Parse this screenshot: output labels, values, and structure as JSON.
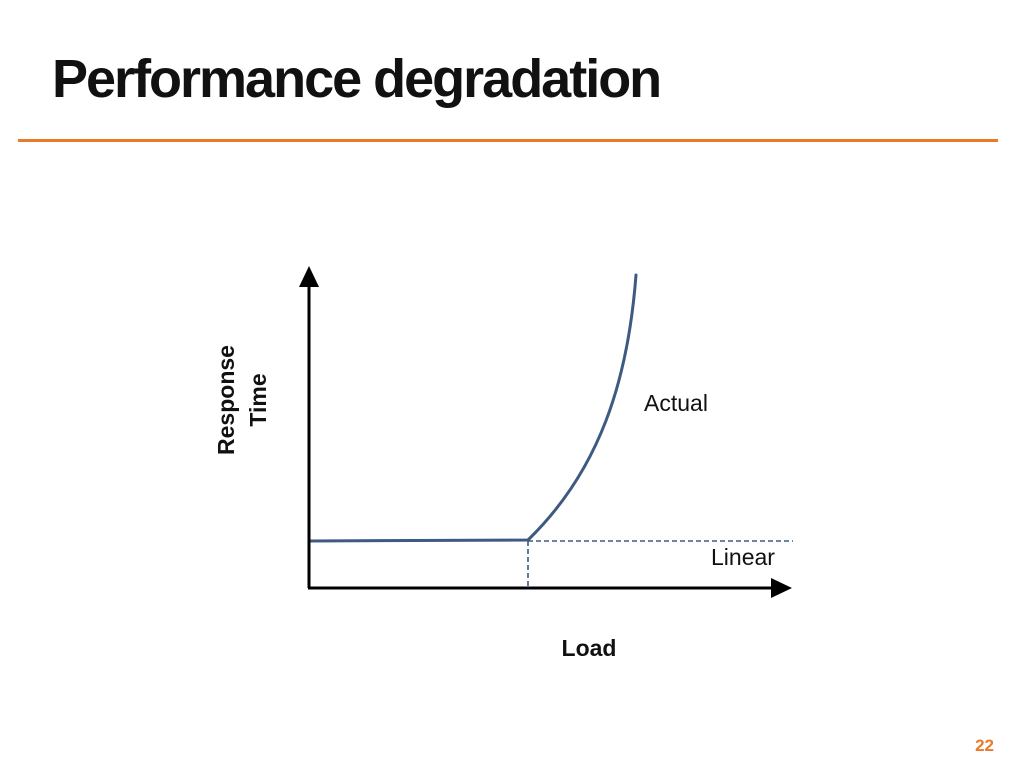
{
  "slide": {
    "title": "Performance degradation",
    "page_number": "22"
  },
  "diagram": {
    "y_axis_label_line1": "Response",
    "y_axis_label_line2": "Time",
    "x_axis_label": "Load",
    "curve_labels": {
      "actual": "Actual",
      "linear": "Linear"
    }
  },
  "colors": {
    "accent": "#ea7a2a",
    "curve": "#3d5a80",
    "axis": "#000000",
    "text": "#111111"
  }
}
